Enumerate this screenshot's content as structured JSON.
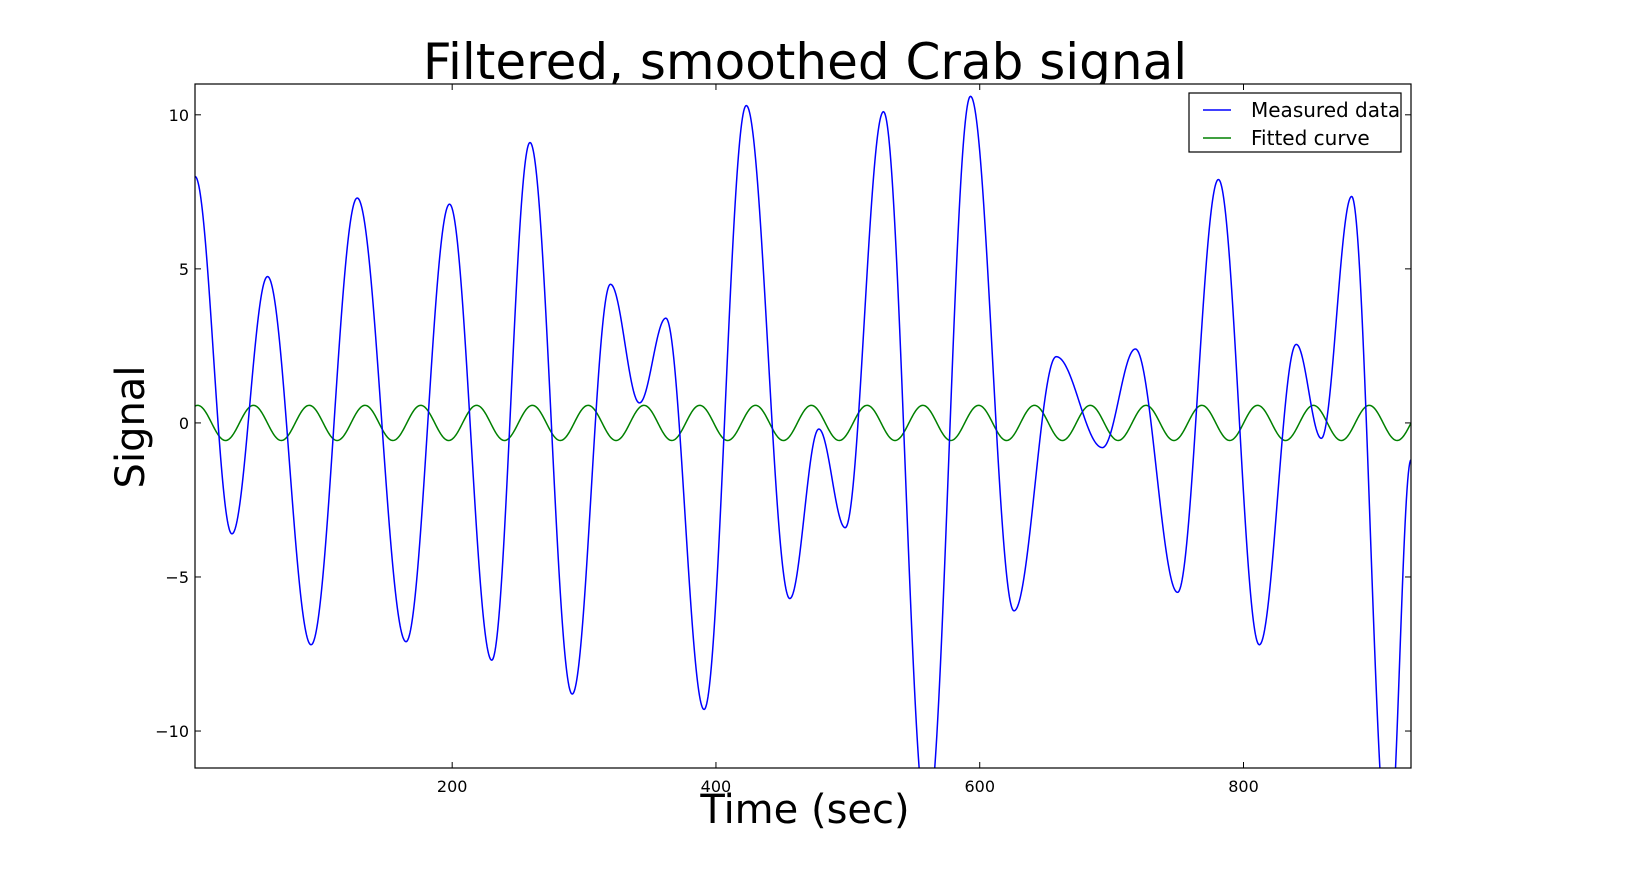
{
  "chart_data": {
    "type": "line",
    "title": "Filtered, smoothed Crab signal",
    "xlabel": "Time (sec)",
    "ylabel": "Signal",
    "xlim": [
      5,
      927
    ],
    "ylim": [
      -11.2,
      11
    ],
    "xticks": [
      200,
      400,
      600,
      800
    ],
    "yticks": [
      -10,
      -5,
      0,
      5,
      10
    ],
    "xtick_labels": [
      "200",
      "400",
      "600",
      "800"
    ],
    "ytick_labels": [
      "−10",
      "−5",
      "0",
      "5",
      "10"
    ],
    "grid": false,
    "legend_position": "top-right",
    "series": [
      {
        "name": "Measured data",
        "color": "#0000ff",
        "extrema": [
          [
            5,
            8.0
          ],
          [
            33,
            -3.6
          ],
          [
            60,
            4.75
          ],
          [
            93,
            -7.2
          ],
          [
            128,
            7.3
          ],
          [
            165,
            -7.1
          ],
          [
            198,
            7.1
          ],
          [
            230,
            -7.7
          ],
          [
            259,
            9.1
          ],
          [
            291,
            -8.8
          ],
          [
            320,
            4.5
          ],
          [
            342,
            0.65
          ],
          [
            362,
            3.4
          ],
          [
            391,
            -9.3
          ],
          [
            423,
            10.3
          ],
          [
            456,
            -5.7
          ],
          [
            478,
            -0.2
          ],
          [
            498,
            -3.4
          ],
          [
            527,
            10.1
          ],
          [
            560,
            -13.0
          ],
          [
            593,
            10.6
          ],
          [
            626,
            -6.1
          ],
          [
            658,
            2.15
          ],
          [
            693,
            -0.8
          ],
          [
            718,
            2.4
          ],
          [
            750,
            -5.5
          ],
          [
            781,
            7.9
          ],
          [
            812,
            -7.2
          ],
          [
            840,
            2.55
          ],
          [
            859,
            -0.5
          ],
          [
            882,
            7.35
          ],
          [
            910,
            -14.0
          ],
          [
            927,
            -1.2
          ]
        ]
      },
      {
        "name": "Fitted curve",
        "color": "#008000",
        "amplitude": 0.57,
        "period": 42.3,
        "phase_x0": 7,
        "x_range": [
          5,
          927
        ]
      }
    ]
  }
}
